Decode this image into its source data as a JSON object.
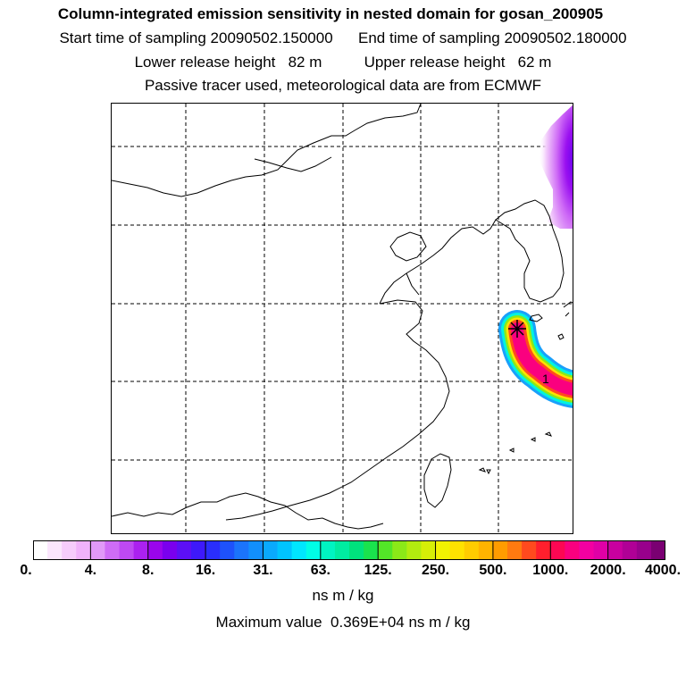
{
  "header": {
    "title": "Column-integrated emission sensitivity in nested domain for gosan_200905",
    "start_time": "Start time of sampling 20090502.150000",
    "end_time": "End time of sampling 20090502.180000",
    "lower_height": "Lower release height   82 m",
    "upper_height": "Upper release height   62 m",
    "tracer_note": "Passive tracer used, meteorological data are from ECMWF"
  },
  "map": {
    "plume_label": "1",
    "release_site_icon": "star-marker-icon"
  },
  "colorbar": {
    "ticks": [
      "0.",
      "4.",
      "8.",
      "16.",
      "31.",
      "63.",
      "125.",
      "250.",
      "500.",
      "1000.",
      "2000.",
      "4000."
    ],
    "units": "ns m / kg",
    "colors": [
      "#ffffff",
      "#fbe6fd",
      "#f6ccfb",
      "#f0b2fa",
      "#e199f8",
      "#cf6cf6",
      "#be49f3",
      "#ab21f0",
      "#9a05ec",
      "#7a00ee",
      "#5c0ff5",
      "#3e19fa",
      "#2a2efc",
      "#1e52fb",
      "#1b74fb",
      "#128ffc",
      "#0aa9fd",
      "#00c4fe",
      "#00e6fe",
      "#00fde6",
      "#00f4c2",
      "#00eca1",
      "#00e27d",
      "#1ae34d",
      "#53e628",
      "#8be918",
      "#b2ec0f",
      "#d6ef07",
      "#f2f202",
      "#ffe200",
      "#ffcc00",
      "#ffb400",
      "#ff9c00",
      "#ff7a10",
      "#ff4a1e",
      "#ff1f2d",
      "#fd0753",
      "#fa007f",
      "#f300a1",
      "#e000a6",
      "#c8009f",
      "#b00096",
      "#98008c",
      "#7a0072"
    ]
  },
  "footer": {
    "max_value": "Maximum value  0.369E+04 ns m / kg"
  }
}
